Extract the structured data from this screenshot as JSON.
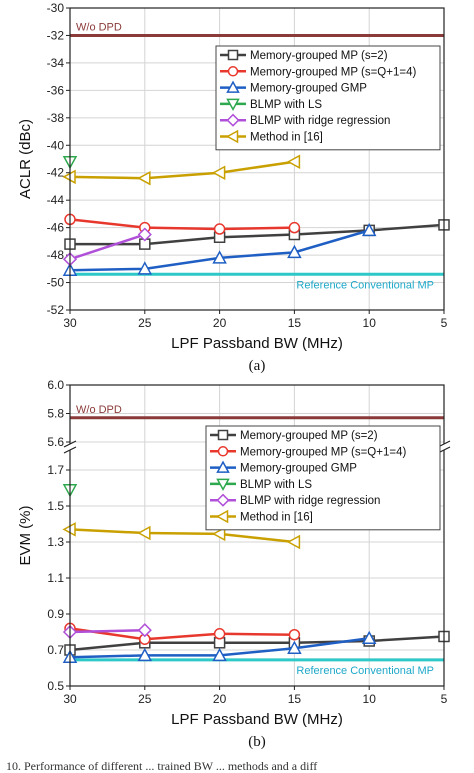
{
  "chart_data": [
    {
      "type": "line",
      "caption": "(a)",
      "xlabel": "LPF Passband BW (MHz)",
      "ylabel": "ACLR (dBc)",
      "x_ticks": [
        "30",
        "25",
        "20",
        "15",
        "10",
        "5"
      ],
      "y_ticks": [
        "-30",
        "-32",
        "-34",
        "-36",
        "-38",
        "-40",
        "-42",
        "-44",
        "-46",
        "-48",
        "-50",
        "-52"
      ],
      "xlim": [
        30,
        5
      ],
      "ylim": [
        -52,
        -30
      ],
      "x_reversed": true,
      "legend_position": "top-right",
      "reference_lines": [
        {
          "label": "W/o DPD",
          "y": -32,
          "color": "#8b3a3a"
        },
        {
          "label": "Reference Conventional MP",
          "y": -49.4,
          "color": "#2ec8c8"
        }
      ],
      "series": [
        {
          "name": "Memory-grouped MP (s=2)",
          "color": "#404040",
          "marker": "square",
          "x": [
            30,
            25,
            20,
            15,
            10,
            5
          ],
          "y": [
            -47.2,
            -47.2,
            -46.7,
            -46.5,
            -46.2,
            -45.8
          ]
        },
        {
          "name": "Memory-grouped MP (s=Q+1=4)",
          "color": "#e8382e",
          "marker": "circle",
          "x": [
            30,
            25,
            20,
            15
          ],
          "y": [
            -45.4,
            -46.0,
            -46.1,
            -46.0
          ]
        },
        {
          "name": "Memory-grouped GMP",
          "color": "#1f5fc4",
          "marker": "triangle-up",
          "x": [
            30,
            25,
            20,
            15,
            10
          ],
          "y": [
            -49.1,
            -49.0,
            -48.2,
            -47.8,
            -46.2
          ]
        },
        {
          "name": "BLMP with LS",
          "color": "#2ea84e",
          "marker": "triangle-down",
          "x": [
            30
          ],
          "y": [
            -41.2
          ]
        },
        {
          "name": "BLMP with ridge regression",
          "color": "#b04fd8",
          "marker": "diamond",
          "x": [
            30,
            25
          ],
          "y": [
            -48.3,
            -46.5
          ]
        },
        {
          "name": "Method in [16]",
          "color": "#c9a000",
          "marker": "triangle-left",
          "x": [
            30,
            25,
            20,
            15
          ],
          "y": [
            -42.3,
            -42.4,
            -42.0,
            -41.2
          ]
        }
      ]
    },
    {
      "type": "line",
      "caption": "(b)",
      "xlabel": "LPF Passband BW (MHz)",
      "ylabel": "EVM (%)",
      "x_ticks": [
        "30",
        "25",
        "20",
        "15",
        "10",
        "5"
      ],
      "y_ticks_upper": [
        "6.0",
        "5.8",
        "5.6"
      ],
      "y_ticks_lower": [
        "1.7",
        "1.5",
        "1.3",
        "1.1",
        "0.9",
        "0.7",
        "0.5"
      ],
      "xlim": [
        30,
        5
      ],
      "ylim_upper": [
        5.6,
        6.0
      ],
      "ylim_lower": [
        0.5,
        1.8
      ],
      "y_axis_break": true,
      "x_reversed": true,
      "legend_position": "top-right",
      "reference_lines": [
        {
          "label": "W/o DPD",
          "y": 5.77,
          "color": "#8b3a3a"
        },
        {
          "label": "Reference Conventional MP",
          "y": 0.645,
          "color": "#2ec8c8"
        }
      ],
      "series": [
        {
          "name": "Memory-grouped MP (s=2)",
          "color": "#404040",
          "marker": "square",
          "x": [
            30,
            25,
            20,
            15,
            10,
            5
          ],
          "y": [
            0.7,
            0.74,
            0.74,
            0.74,
            0.75,
            0.775
          ]
        },
        {
          "name": "Memory-grouped MP (s=Q+1=4)",
          "color": "#e8382e",
          "marker": "circle",
          "x": [
            30,
            25,
            20,
            15
          ],
          "y": [
            0.82,
            0.76,
            0.79,
            0.785
          ]
        },
        {
          "name": "Memory-grouped GMP",
          "color": "#1f5fc4",
          "marker": "triangle-up",
          "x": [
            30,
            25,
            20,
            15,
            10
          ],
          "y": [
            0.66,
            0.67,
            0.67,
            0.71,
            0.765
          ]
        },
        {
          "name": "BLMP with LS",
          "color": "#2ea84e",
          "marker": "triangle-down",
          "x": [
            30
          ],
          "y": [
            1.59
          ]
        },
        {
          "name": "BLMP with ridge regression",
          "color": "#b04fd8",
          "marker": "diamond",
          "x": [
            30,
            25
          ],
          "y": [
            0.8,
            0.81
          ]
        },
        {
          "name": "Method in [16]",
          "color": "#c9a000",
          "marker": "triangle-left",
          "x": [
            30,
            25,
            20,
            15
          ],
          "y": [
            1.37,
            1.35,
            1.345,
            1.3
          ]
        }
      ]
    }
  ],
  "footer_text": "10. Performance of different ... trained BW ... methods and a diff"
}
